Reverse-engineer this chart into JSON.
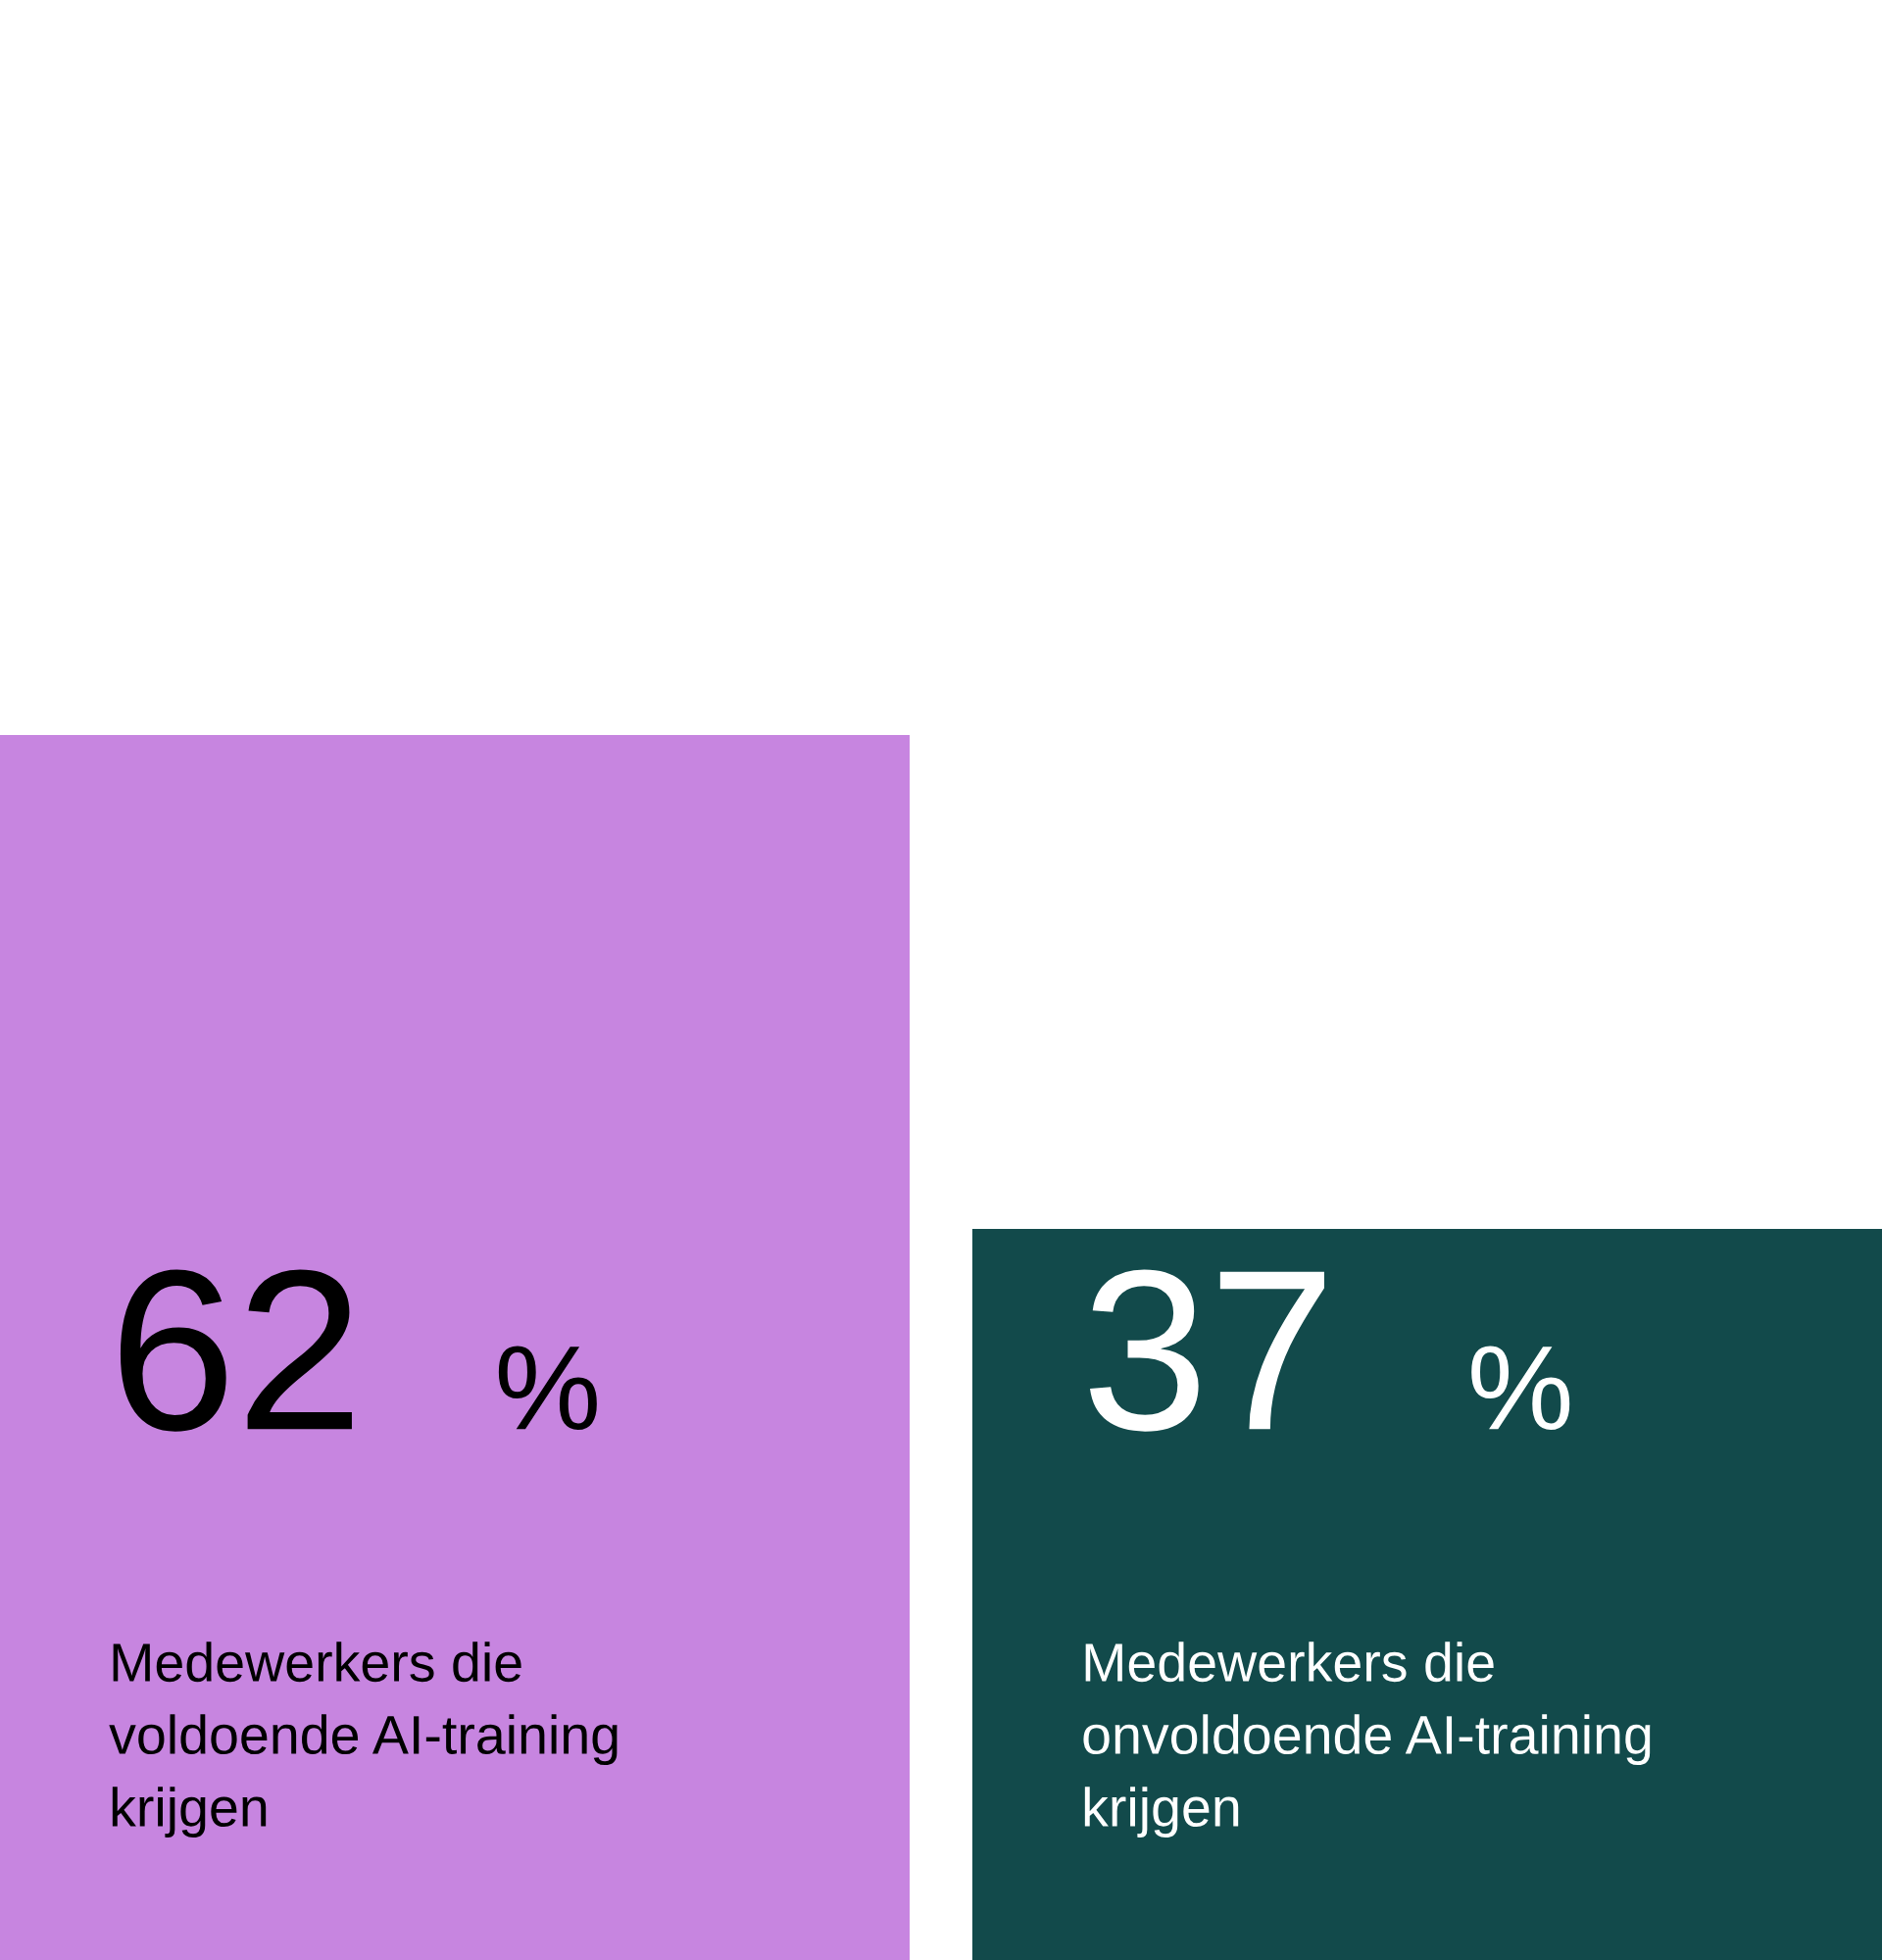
{
  "chart_data": {
    "type": "bar",
    "categories": [
      "Medewerkers die\nvoldoende AI-training\nkrijgen",
      "Medewerkers die\nonvoldoende AI-training\nkrijgen"
    ],
    "values": [
      62,
      37
    ],
    "colors": [
      "#c785e0",
      "#124a4b"
    ],
    "value_labels": [
      "62 %",
      "37 %"
    ]
  }
}
